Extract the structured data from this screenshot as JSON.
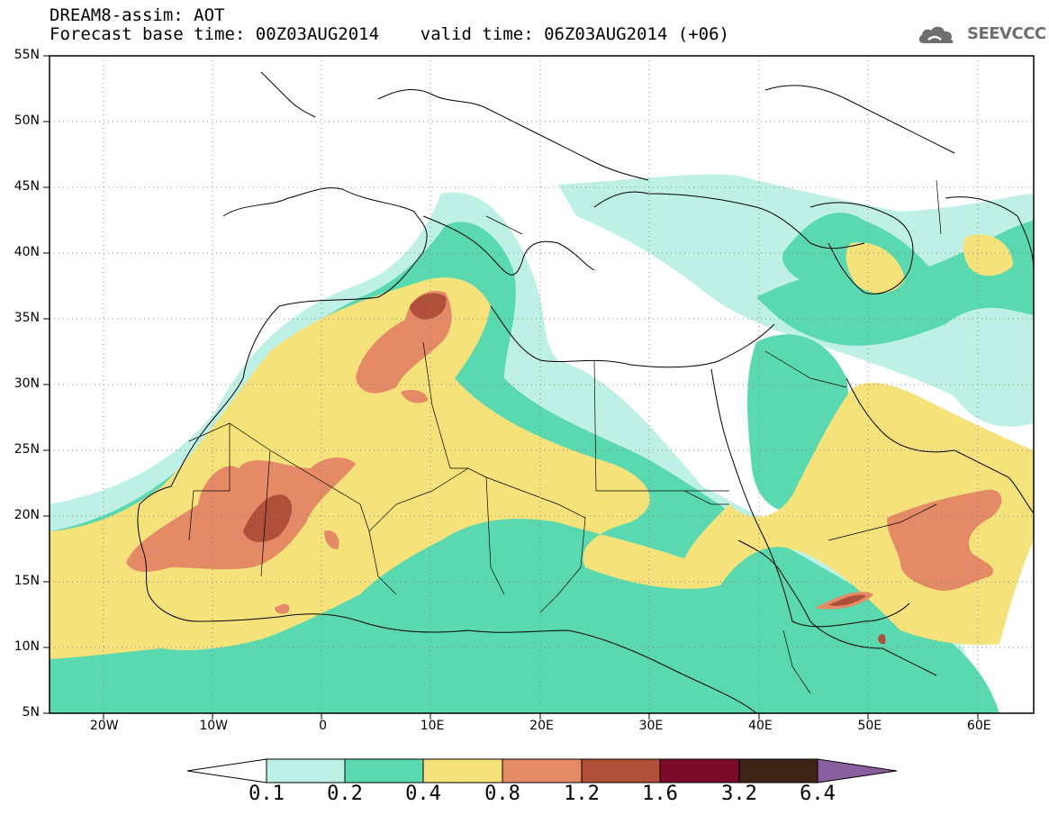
{
  "header": {
    "line1": "DREAM8-assim: AOT",
    "line2": "Forecast base time: 00Z03AUG2014    valid time: 06Z03AUG2014 (+06)"
  },
  "logo": {
    "text": "SEEVCCC",
    "icon": "cloud-icon"
  },
  "map": {
    "lat_ticks": [
      {
        "label": "55N",
        "value": 55
      },
      {
        "label": "50N",
        "value": 50
      },
      {
        "label": "45N",
        "value": 45
      },
      {
        "label": "40N",
        "value": 40
      },
      {
        "label": "35N",
        "value": 35
      },
      {
        "label": "30N",
        "value": 30
      },
      {
        "label": "25N",
        "value": 25
      },
      {
        "label": "20N",
        "value": 20
      },
      {
        "label": "15N",
        "value": 15
      },
      {
        "label": "10N",
        "value": 10
      },
      {
        "label": "5N",
        "value": 5
      }
    ],
    "lon_ticks": [
      {
        "label": "20W",
        "value": -20
      },
      {
        "label": "10W",
        "value": -10
      },
      {
        "label": "0",
        "value": 0
      },
      {
        "label": "10E",
        "value": 10
      },
      {
        "label": "20E",
        "value": 20
      },
      {
        "label": "30E",
        "value": 30
      },
      {
        "label": "40E",
        "value": 40
      },
      {
        "label": "50E",
        "value": 50
      },
      {
        "label": "60E",
        "value": 60
      }
    ],
    "lon_range": [
      -25,
      65
    ],
    "lat_range": [
      5,
      55
    ]
  },
  "colorbar": {
    "labels": [
      "0.1",
      "0.2",
      "0.4",
      "0.8",
      "1.2",
      "1.6",
      "3.2",
      "6.4"
    ],
    "colors": [
      "#ffffff",
      "#bff0e6",
      "#5ad9b0",
      "#f5e27a",
      "#e58a66",
      "#b0503a",
      "#7a0b2a",
      "#3c2316",
      "#8a5fa0"
    ]
  }
}
